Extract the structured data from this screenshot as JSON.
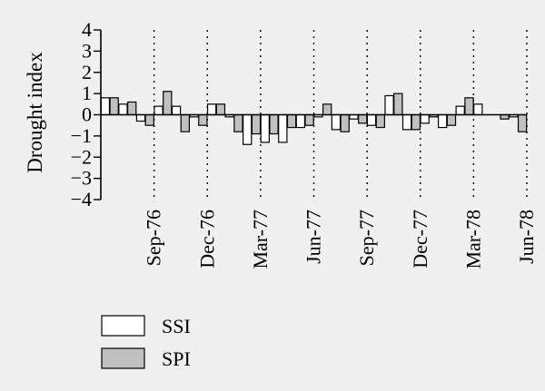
{
  "chart_data": {
    "type": "bar",
    "ylabel": "Drought index",
    "xlabel": "",
    "ylim": [
      -4,
      4
    ],
    "yticks": [
      4,
      3,
      2,
      1,
      0,
      -1,
      -2,
      -3,
      -4
    ],
    "x_tick_labels": [
      "Sep-76",
      "Dec-76",
      "Mar-77",
      "Jun-77",
      "Sep-77",
      "Dec-77",
      "Mar-78",
      "Jun-78"
    ],
    "x_tick_positions": [
      3,
      6,
      9,
      12,
      15,
      18,
      21,
      24
    ],
    "grid": "vertical dotted lines at x ticks",
    "legend": "below",
    "series": [
      {
        "name": "SSI",
        "color": "#ffffff",
        "values": [
          0.8,
          0.5,
          -0.3,
          0.4,
          0.4,
          -0.1,
          0.5,
          -0.1,
          -1.4,
          -1.3,
          -1.3,
          -0.6,
          -0.1,
          -0.7,
          -0.2,
          -0.5,
          0.9,
          -0.7,
          -0.4,
          -0.6,
          0.4,
          0.5,
          0.0,
          -0.1
        ]
      },
      {
        "name": "SPI",
        "color": "#c0c0c0",
        "values": [
          0.8,
          0.6,
          -0.5,
          1.1,
          -0.8,
          -0.5,
          0.5,
          -0.8,
          -0.9,
          -0.9,
          -0.6,
          -0.5,
          0.5,
          -0.8,
          -0.4,
          -0.6,
          1.0,
          -0.7,
          -0.1,
          -0.5,
          0.8,
          0.0,
          -0.2,
          -0.8
        ]
      }
    ]
  }
}
